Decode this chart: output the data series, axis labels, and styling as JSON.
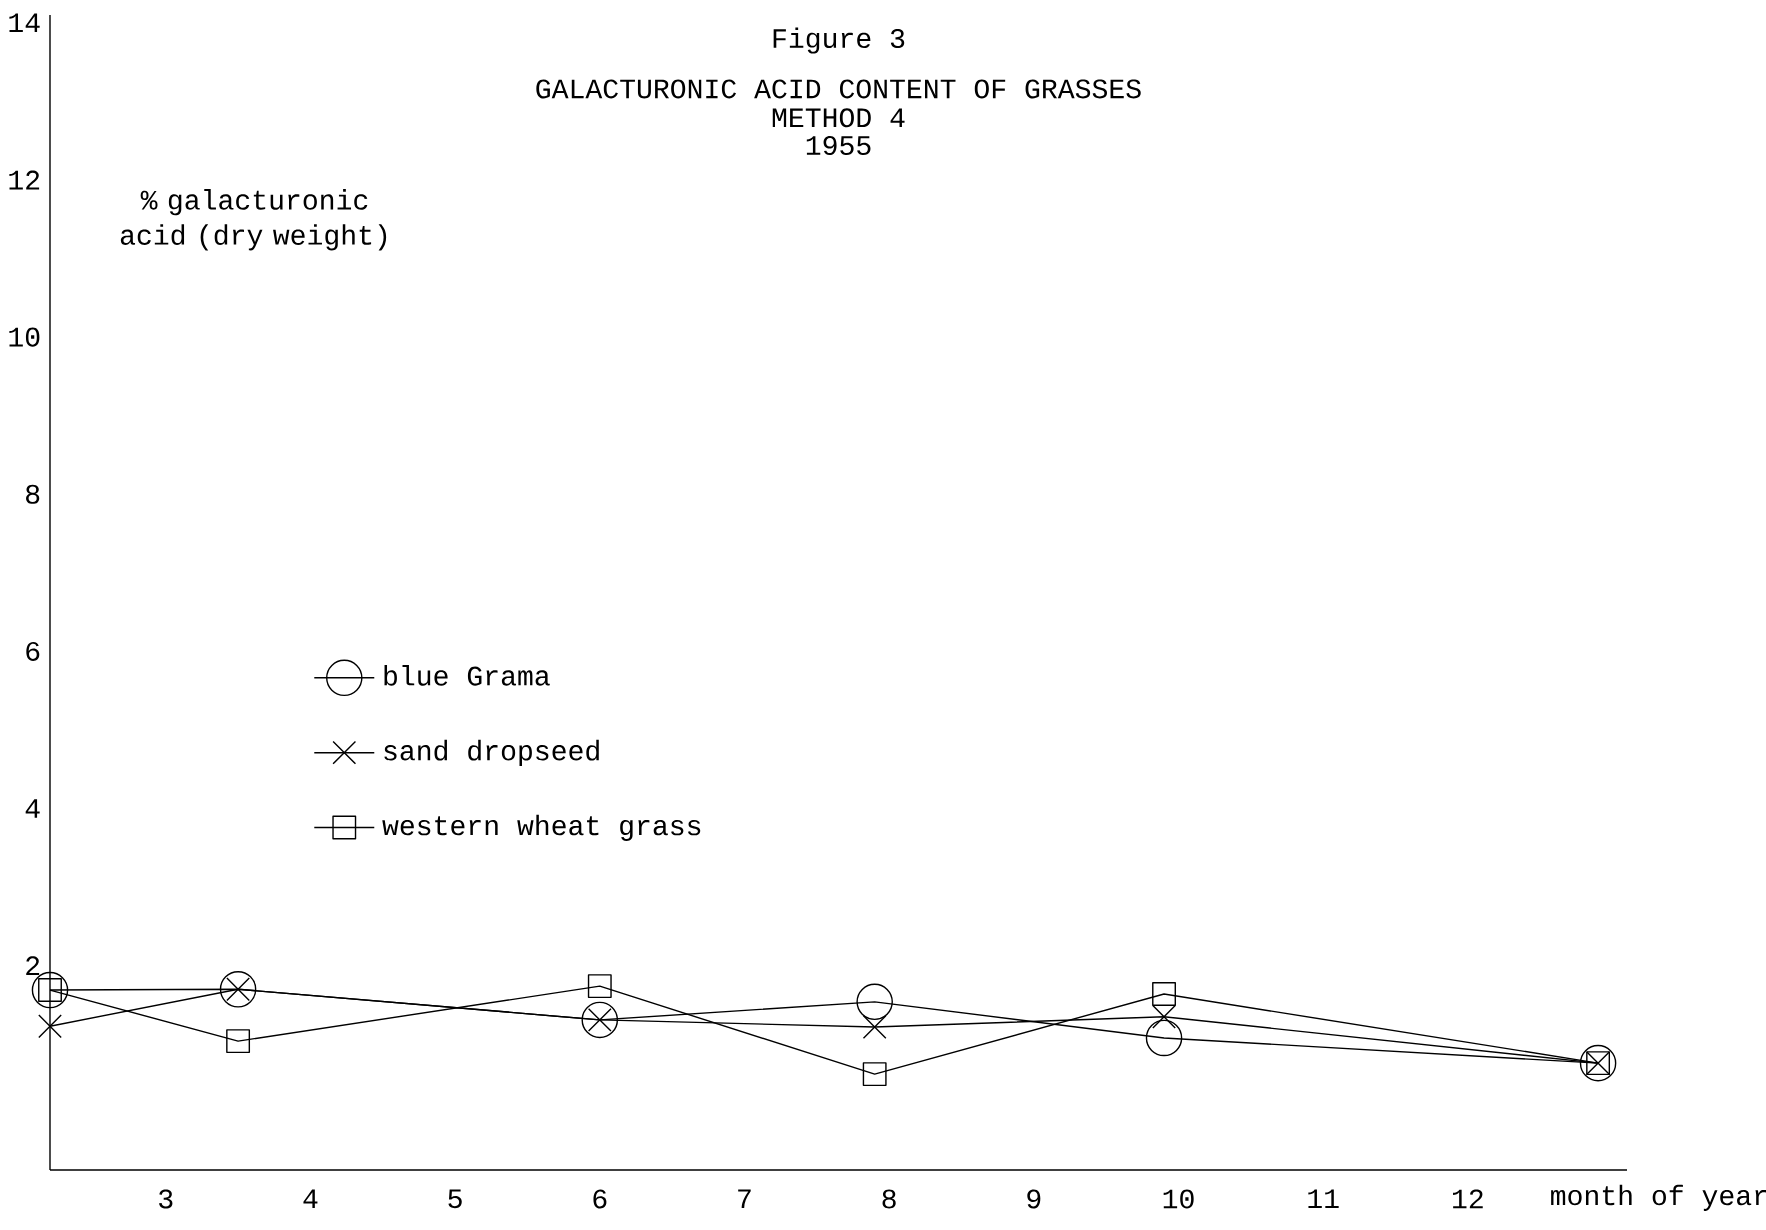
{
  "chart_data": {
    "type": "line",
    "title": "Figure 3",
    "subtitle": "GALACTURONIC ACID CONTENT OF GRASSES",
    "annotations": [
      "METHOD 4",
      "1955"
    ],
    "xlabel": "month of year",
    "ylabel": "% galacturonic acid (dry weight)",
    "x": [
      2.2,
      3.5,
      6.0,
      7.9,
      9.9,
      12.9
    ],
    "xlim": [
      2.2,
      13.1
    ],
    "xticks": [
      3,
      4,
      5,
      6,
      7,
      8,
      9,
      10,
      11,
      12
    ],
    "ylim": [
      -0.6,
      14.1
    ],
    "yticks": [
      2,
      4,
      6,
      8,
      10,
      12,
      14
    ],
    "grid": false,
    "legend": "left",
    "series": [
      {
        "name": "blue Grama",
        "color": "#000000",
        "marker": "circle",
        "values": [
          1.69,
          1.7,
          1.31,
          1.54,
          1.08,
          0.76
        ]
      },
      {
        "name": "sand dropseed",
        "color": "#000000",
        "marker": "cross",
        "values": [
          1.23,
          1.7,
          1.31,
          1.22,
          1.35,
          0.76
        ]
      },
      {
        "name": "western wheat grass",
        "color": "#000000",
        "marker": "square",
        "values": [
          1.69,
          1.04,
          1.74,
          0.62,
          1.64,
          0.76
        ]
      }
    ]
  }
}
